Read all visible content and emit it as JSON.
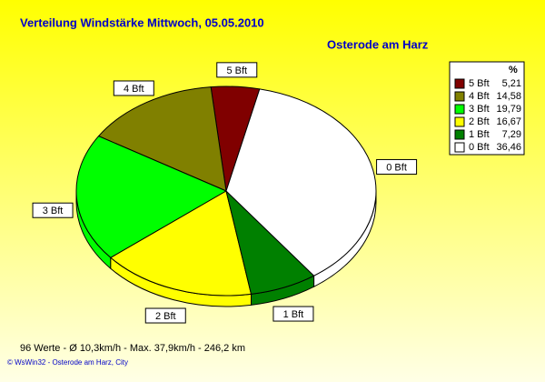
{
  "chart_data": {
    "type": "pie",
    "title": "Verteilung Windstärke  Mittwoch, 05.05.2010",
    "subtitle": "Osterode am Harz",
    "legend_title": "%",
    "categories": [
      "5 Bft",
      "4 Bft",
      "3 Bft",
      "2 Bft",
      "1 Bft",
      "0 Bft"
    ],
    "values": [
      5.21,
      14.58,
      19.79,
      16.67,
      7.29,
      36.46
    ],
    "value_labels": [
      "5,21",
      "14,58",
      "19,79",
      "16,67",
      "7,29",
      "36,46"
    ],
    "colors": [
      "#800000",
      "#808000",
      "#00ff00",
      "#ffff00",
      "#008000",
      "#ffffff"
    ],
    "footer": "96 Werte   -   Ø 10,3km/h   -   Max. 37,9km/h   -   246,2 km",
    "credit": "© WsWin32  -  Osterode am Harz, City"
  }
}
